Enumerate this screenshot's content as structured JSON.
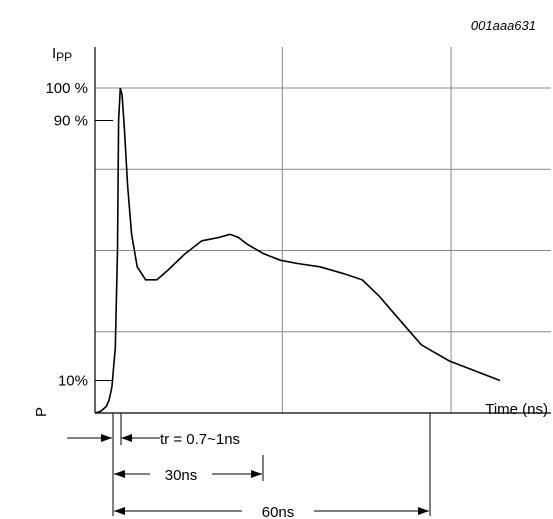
{
  "chart_data": {
    "type": "line",
    "figure_id": "001aaa631",
    "ylabel": "I",
    "ylabel_sub": "PP",
    "xlabel": "Time (ns)",
    "corner_label": "P",
    "y_ticks": [
      {
        "label": "100 %",
        "value": 100
      },
      {
        "label": "90 %",
        "value": 90
      },
      {
        "label": "10%",
        "value": 10
      }
    ],
    "gridlines_percent": [
      100,
      75,
      50,
      25
    ],
    "gridlines_ns": [
      30,
      60
    ],
    "xlim": [
      0,
      72
    ],
    "ylim": [
      0,
      100
    ],
    "annotations": {
      "rise_time": "tr = 0.7~1ns",
      "t30": "30ns",
      "t60": "60ns"
    },
    "series": [
      {
        "x": [
          0,
          1,
          2,
          2.5,
          3,
          3.6,
          4,
          4.2,
          4.5,
          4.8,
          5.2,
          5.8,
          6.5,
          7.5,
          9,
          11,
          13,
          16,
          19,
          22,
          24,
          25.5,
          27,
          28,
          30,
          33,
          36,
          40,
          44,
          47.5,
          50.5,
          53,
          56,
          58,
          60,
          63,
          66,
          69,
          72
        ],
        "y": [
          0,
          0.5,
          2,
          4,
          8,
          20,
          50,
          90,
          100,
          98,
          88,
          70,
          55,
          45,
          41,
          41,
          44,
          49,
          53,
          54,
          55,
          54,
          52,
          51,
          49,
          47,
          46,
          45,
          43,
          41,
          36,
          31,
          25,
          21,
          19,
          16,
          14,
          12,
          10
        ]
      }
    ]
  }
}
